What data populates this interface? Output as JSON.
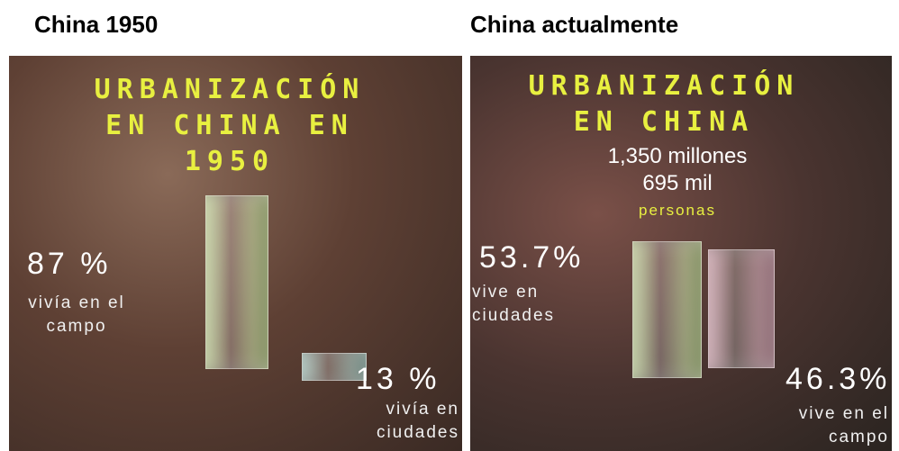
{
  "chart_data": [
    {
      "type": "bar",
      "heading": "China 1950",
      "title": "URBANIZACIÓN EN CHINA EN 1950",
      "categories": [
        "vivía en el campo",
        "vivía en ciudades"
      ],
      "values": [
        87,
        13
      ],
      "value_labels": [
        "87 %",
        "13 %"
      ],
      "colors": [
        "#c8e6a0",
        "#a8d8d0"
      ]
    },
    {
      "type": "bar",
      "heading": "China actualmente",
      "title": "URBANIZACIÓN EN CHINA",
      "annotations": [
        "1,350 millones",
        "695 mil",
        "personas"
      ],
      "categories": [
        "vive en ciudades",
        "vive en el campo"
      ],
      "values": [
        53.7,
        46.3
      ],
      "value_labels": [
        "53.7%",
        "46.3%"
      ],
      "colors": [
        "#c8e6a0",
        "#e0b0c0"
      ]
    }
  ]
}
